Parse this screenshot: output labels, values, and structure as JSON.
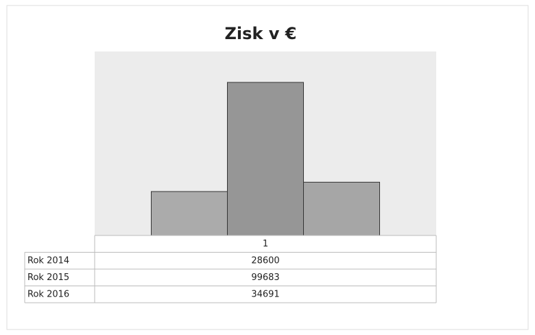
{
  "chart_data": {
    "type": "bar",
    "title": "Zisk  v €",
    "categories": [
      "1"
    ],
    "series": [
      {
        "name": "Rok 2014",
        "color": "#ababab",
        "values": [
          28600
        ]
      },
      {
        "name": "Rok 2015",
        "color": "#969696",
        "values": [
          99683
        ]
      },
      {
        "name": "Rok 2016",
        "color": "#a6a6a6",
        "values": [
          34691
        ]
      }
    ]
  }
}
